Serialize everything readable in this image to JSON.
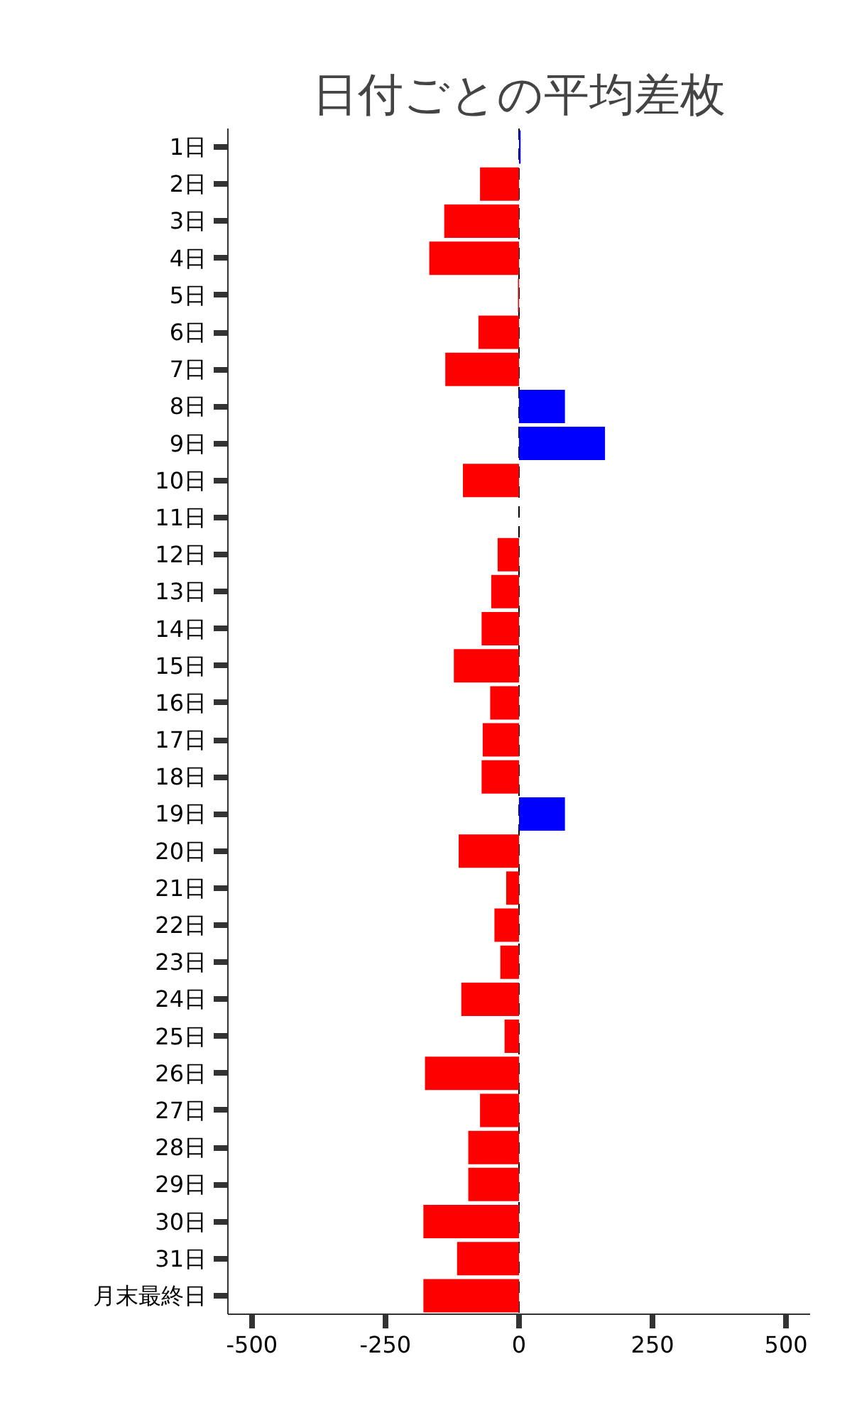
{
  "chart_data": {
    "type": "bar",
    "orientation": "horizontal",
    "title": "日付ごとの平均差枚",
    "categories": [
      "1日",
      "2日",
      "3日",
      "4日",
      "5日",
      "6日",
      "7日",
      "8日",
      "9日",
      "10日",
      "11日",
      "12日",
      "13日",
      "14日",
      "15日",
      "16日",
      "17日",
      "18日",
      "19日",
      "20日",
      "21日",
      "22日",
      "23日",
      "24日",
      "25日",
      "26日",
      "27日",
      "28日",
      "29日",
      "30日",
      "31日",
      "月末最終日"
    ],
    "values": [
      3,
      -73,
      -140,
      -168,
      -2,
      -76,
      -138,
      86,
      161,
      -105,
      null,
      -40,
      -52,
      -70,
      -122,
      -54,
      -68,
      -70,
      86,
      -113,
      -24,
      -46,
      -35,
      -108,
      -27,
      -176,
      -73,
      -95,
      -95,
      -179,
      -116,
      -179
    ],
    "colors": [
      "#0000ff",
      "#ff0000",
      "#ff0000",
      "#ff0000",
      "#ff0000",
      "#ff0000",
      "#ff0000",
      "#0000ff",
      "#0000ff",
      "#ff0000",
      "#ff0000",
      "#ff0000",
      "#ff0000",
      "#ff0000",
      "#ff0000",
      "#ff0000",
      "#ff0000",
      "#ff0000",
      "#0000ff",
      "#ff0000",
      "#ff0000",
      "#ff0000",
      "#ff0000",
      "#ff0000",
      "#ff0000",
      "#ff0000",
      "#ff0000",
      "#ff0000",
      "#ff0000",
      "#ff0000",
      "#ff0000",
      "#ff0000"
    ],
    "xlim": [
      -545,
      545
    ],
    "xticks": [
      -500,
      -250,
      0,
      250,
      500
    ],
    "ref_lines": [
      {
        "axis": "x",
        "value": 0,
        "color": "#000000",
        "line_style": "dashed"
      }
    ],
    "grid": false
  }
}
